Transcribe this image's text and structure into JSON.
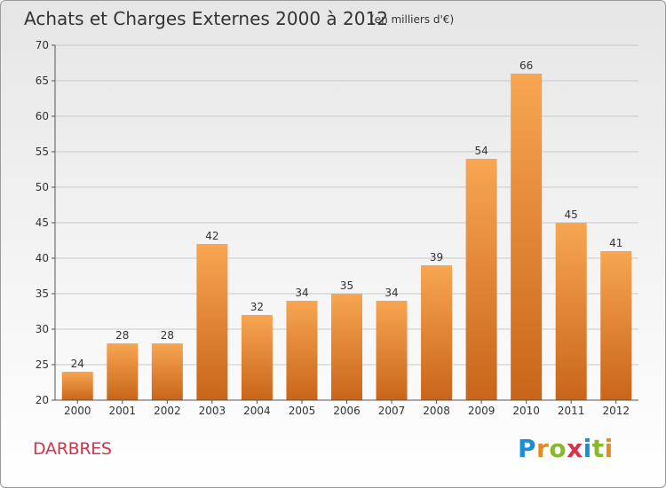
{
  "title": "Achats et Charges Externes 2000 à 2012",
  "subtitle": "(en milliers d'€)",
  "commune": "DARBRES",
  "brand": {
    "name": "Proxiti",
    "letter_colors": [
      "#1a8fd6",
      "#e58b1e",
      "#8ab82c",
      "#d4344a",
      "#1a8fd6",
      "#8ab82c",
      "#e58b1e"
    ]
  },
  "colors": {
    "bar_top": "#f7a652",
    "bar_bottom": "#c9651a",
    "grid": "#c8c8c8",
    "axis": "#555555"
  },
  "chart_data": {
    "type": "bar",
    "title": "Achats et Charges Externes 2000 à 2012",
    "subtitle": "(en milliers d'€)",
    "categories": [
      "2000",
      "2001",
      "2002",
      "2003",
      "2004",
      "2005",
      "2006",
      "2007",
      "2008",
      "2009",
      "2010",
      "2011",
      "2012"
    ],
    "values": [
      24,
      28,
      28,
      42,
      32,
      34,
      35,
      34,
      39,
      54,
      66,
      45,
      41
    ],
    "ylim": [
      20,
      70
    ],
    "yticks": [
      20,
      25,
      30,
      35,
      40,
      45,
      50,
      55,
      60,
      65,
      70
    ],
    "grid": true,
    "xlabel": "",
    "ylabel": ""
  }
}
